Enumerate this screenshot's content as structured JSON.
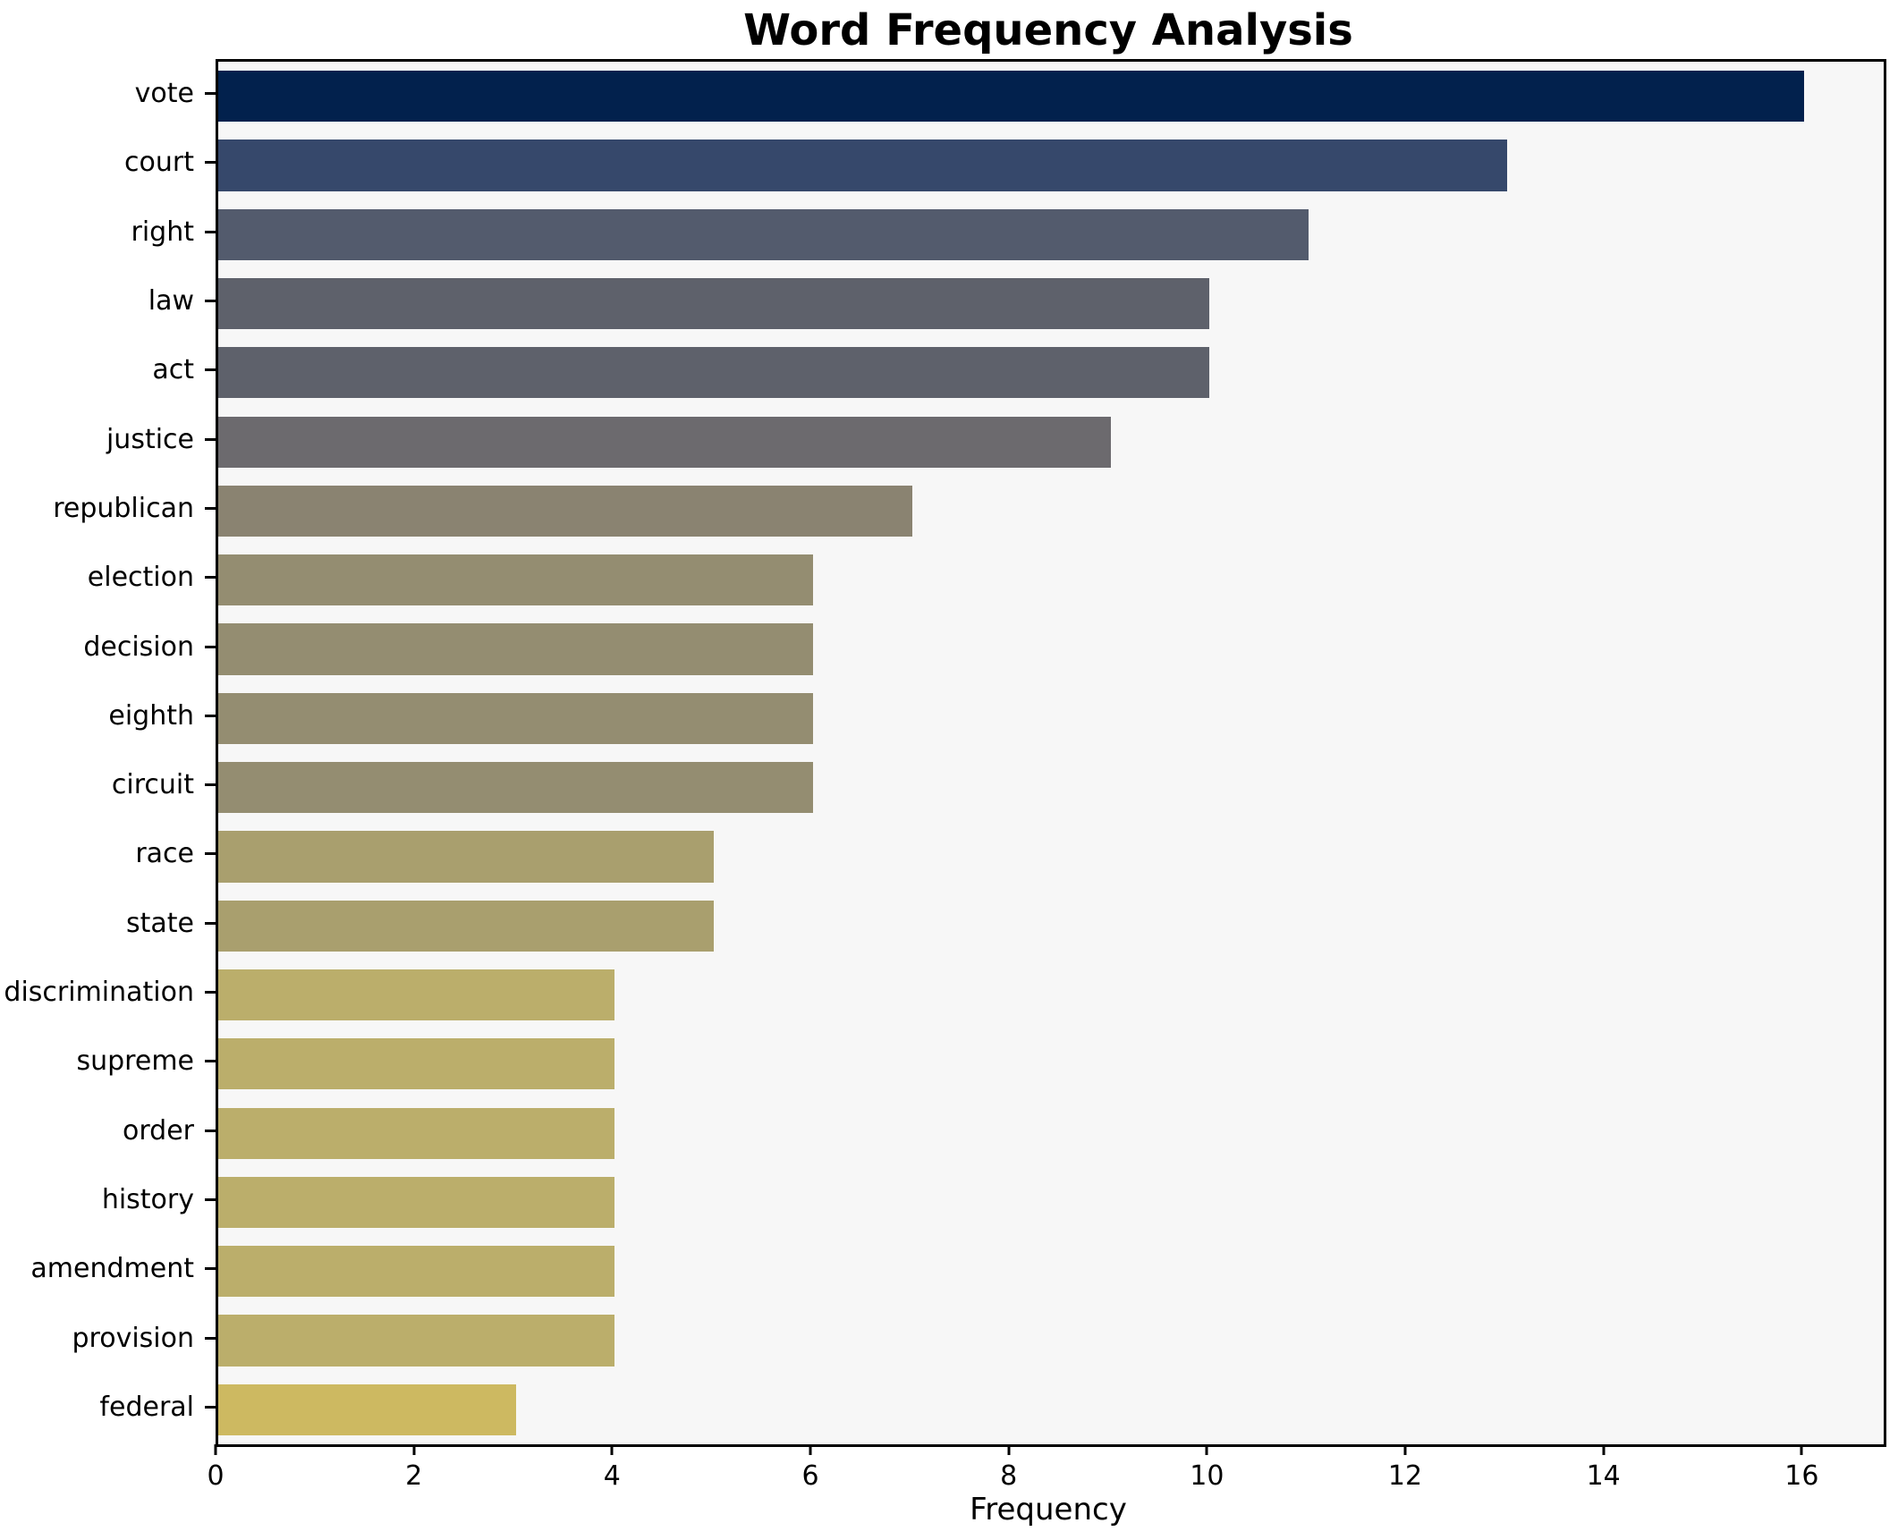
{
  "chart_data": {
    "type": "bar",
    "orientation": "horizontal",
    "title": "Word Frequency Analysis",
    "xlabel": "Frequency",
    "ylabel": "",
    "categories": [
      "vote",
      "court",
      "right",
      "law",
      "act",
      "justice",
      "republican",
      "election",
      "decision",
      "eighth",
      "circuit",
      "race",
      "state",
      "discrimination",
      "supreme",
      "order",
      "history",
      "amendment",
      "provision",
      "federal"
    ],
    "values": [
      16,
      13,
      11,
      10,
      10,
      9,
      7,
      6,
      6,
      6,
      6,
      5,
      5,
      4,
      4,
      4,
      4,
      4,
      4,
      3
    ],
    "bar_colors": [
      "#02214d",
      "#36486b",
      "#535b6d",
      "#5e616b",
      "#5e616b",
      "#6c6a6e",
      "#8a8371",
      "#948d71",
      "#948d71",
      "#948d71",
      "#948d71",
      "#a99f6e",
      "#a99f6e",
      "#bbae6b",
      "#bbae6b",
      "#bbae6b",
      "#bbae6b",
      "#bbae6b",
      "#bbae6b",
      "#cdb961"
    ],
    "xlim": [
      0,
      16.8
    ],
    "xticks": [
      0,
      2,
      4,
      6,
      8,
      10,
      12,
      14,
      16
    ],
    "grid": false,
    "legend": false,
    "colormap": "cividis-reversed-by-value",
    "plot_bg": "#f7f7f7",
    "figure_bg": "#ffffff",
    "spine_color": "#000000"
  }
}
